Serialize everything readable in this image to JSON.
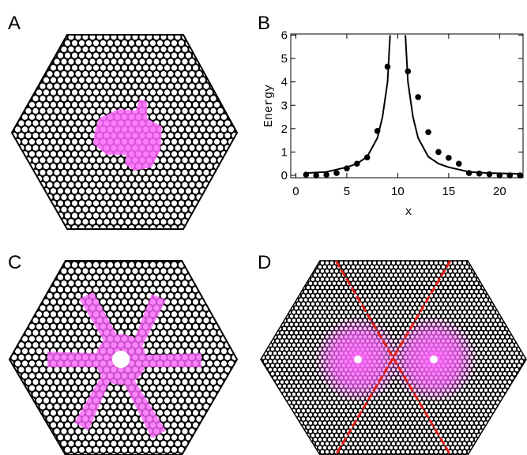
{
  "panels": [
    "A",
    "B",
    "C",
    "D"
  ],
  "chart_data": {
    "type": "scatter-line",
    "x_label": "x",
    "y_label": "Energy",
    "xlim": [
      -0.5,
      22.3
    ],
    "ylim": [
      -0.1,
      6.05
    ],
    "xticks": [
      0,
      5,
      10,
      15,
      20
    ],
    "yticks": [
      0,
      1,
      2,
      3,
      4,
      5,
      6
    ],
    "series": [
      {
        "kind": "points",
        "color": "#000000",
        "x": [
          1,
          2,
          3,
          4,
          5,
          6,
          7,
          8,
          9,
          11,
          12,
          13,
          14,
          15,
          16,
          17,
          18,
          19,
          20,
          21,
          22
        ],
        "values": [
          0.03,
          0.0,
          0.03,
          0.1,
          0.3,
          0.5,
          0.77,
          1.9,
          4.65,
          4.45,
          3.35,
          1.85,
          1.0,
          0.75,
          0.5,
          0.1,
          0.08,
          0.05,
          0.0,
          0.0,
          0.0
        ]
      },
      {
        "kind": "line",
        "color": "#000000",
        "x": [
          1,
          3,
          5,
          6,
          7,
          8,
          8.5,
          9,
          9.25,
          null,
          10.75,
          11,
          11.5,
          12,
          13,
          14,
          15,
          17,
          19,
          22
        ],
        "values": [
          0.1,
          0.15,
          0.35,
          0.5,
          0.8,
          1.6,
          2.5,
          4.0,
          6.0,
          null,
          6.0,
          4.0,
          2.5,
          1.6,
          0.8,
          0.5,
          0.35,
          0.15,
          0.1,
          0.07
        ]
      }
    ]
  }
}
